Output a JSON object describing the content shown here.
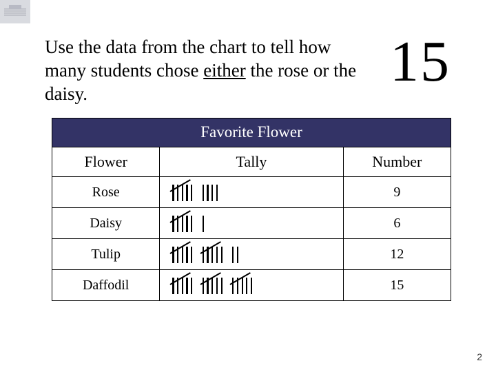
{
  "question": {
    "before_underline": "Use the data from the chart to tell how many students chose ",
    "underline": "either",
    "after_underline": " the rose or the daisy."
  },
  "answer": "15",
  "table": {
    "title": "Favorite Flower",
    "columns": [
      "Flower",
      "Tally",
      "Number"
    ],
    "rows": [
      {
        "flower": "Rose",
        "tally": [
          5,
          4
        ],
        "number": "9"
      },
      {
        "flower": "Daisy",
        "tally": [
          5,
          1
        ],
        "number": "6"
      },
      {
        "flower": "Tulip",
        "tally": [
          5,
          5,
          2
        ],
        "number": "12"
      },
      {
        "flower": "Daffodil",
        "tally": [
          5,
          5,
          5
        ],
        "number": "15"
      }
    ],
    "header_bg": "#333366",
    "header_color": "#ffffff",
    "border_color": "#000000",
    "font_family": "Times New Roman"
  },
  "page_number": "2",
  "corner_motif": {
    "bg": "#d9dbe0",
    "accent": "#7a7c8a"
  }
}
